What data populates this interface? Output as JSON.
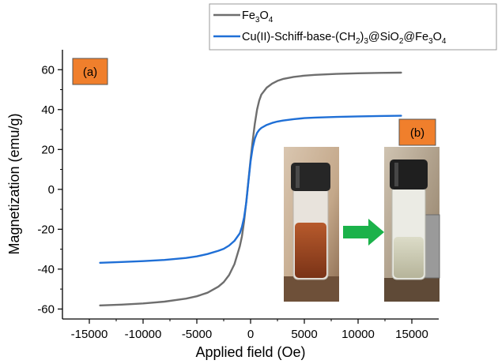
{
  "chart_data": {
    "type": "line",
    "xlabel": "Applied field (Oe)",
    "ylabel": "Magnetization (emu/g)",
    "xlim": [
      -17500,
      17500
    ],
    "ylim": [
      -65,
      70
    ],
    "x_ticks": [
      -15000,
      -10000,
      -5000,
      0,
      5000,
      10000,
      15000
    ],
    "y_ticks": [
      -60,
      -40,
      -20,
      0,
      20,
      40,
      60
    ],
    "x_tick_labels": [
      "-15000",
      "-10000",
      "-5000",
      "0",
      "5000",
      "10000",
      "15000"
    ],
    "y_tick_labels": [
      "-60",
      "-40",
      "-20",
      "0",
      "20",
      "40",
      "60"
    ],
    "legend_position": "top-right",
    "grid": false,
    "series": [
      {
        "name": "Fe3O4",
        "color": "#6e6e6e",
        "x": [
          -14000,
          -12000,
          -10000,
          -8000,
          -6000,
          -5000,
          -4000,
          -3000,
          -2500,
          -2000,
          -1500,
          -1000,
          -800,
          -600,
          -400,
          -200,
          0,
          200,
          400,
          600,
          800,
          1000,
          1500,
          2000,
          2500,
          3000,
          4000,
          5000,
          6000,
          8000,
          10000,
          12000,
          14000
        ],
        "y": [
          -58.2,
          -57.8,
          -57.2,
          -56.3,
          -54.8,
          -53.6,
          -51.8,
          -48.8,
          -46.5,
          -43.0,
          -37.5,
          -28.5,
          -23.5,
          -16.0,
          -6.0,
          4.5,
          15.0,
          24.5,
          33.0,
          40.0,
          44.5,
          47.5,
          51.0,
          53.0,
          54.4,
          55.3,
          56.4,
          57.0,
          57.4,
          57.9,
          58.2,
          58.4,
          58.5
        ]
      },
      {
        "name": "Cu(II)-Schiff-base-(CH2)3@SiO2@Fe3O4",
        "color": "#1f6fd6",
        "x": [
          -14000,
          -12000,
          -10000,
          -8000,
          -6000,
          -5000,
          -4000,
          -3000,
          -2500,
          -2000,
          -1500,
          -1000,
          -800,
          -600,
          -400,
          -200,
          0,
          200,
          400,
          600,
          800,
          1000,
          1500,
          2000,
          2500,
          3000,
          4000,
          5000,
          6000,
          8000,
          10000,
          12000,
          14000
        ],
        "y": [
          -36.8,
          -36.4,
          -36.0,
          -35.4,
          -34.4,
          -33.6,
          -32.4,
          -30.8,
          -29.8,
          -28.2,
          -25.8,
          -22.0,
          -18.8,
          -14.0,
          -6.5,
          4.0,
          14.0,
          21.0,
          25.5,
          28.3,
          29.8,
          30.8,
          32.3,
          33.3,
          34.0,
          34.5,
          35.2,
          35.7,
          36.0,
          36.3,
          36.6,
          36.8,
          36.9
        ]
      }
    ],
    "panel_labels": {
      "a": "(a)",
      "b": "(b)",
      "color": "#f07f2c"
    },
    "legend_labels": {
      "fe3o4": {
        "base": "Fe",
        "sub1": "3",
        "mid1": "O",
        "sub2": "4"
      },
      "composite": {
        "p1": "Cu(II)-Schiff-base-(CH",
        "s1": "2",
        "p2": ")",
        "s2": "3",
        "p3": "@SiO",
        "s3": "2",
        "p4": "@Fe",
        "s4": "3",
        "p5": "O",
        "s5": "4"
      }
    },
    "inset_arrow_color": "#1bb24a"
  }
}
